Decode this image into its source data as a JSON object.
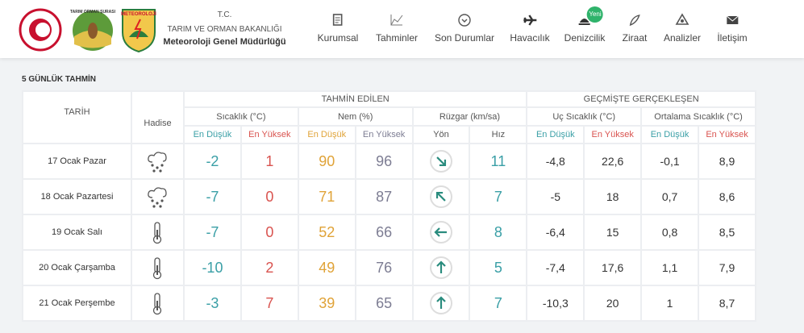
{
  "header": {
    "logos": [
      "TARIM ORMAN ŞURASI",
      "METEOROLOJİ"
    ],
    "org": [
      "T.C.",
      "TARIM VE ORMAN BAKANLIĞI",
      "Meteoroloji Genel Müdürlüğü"
    ],
    "nav": [
      {
        "label": "Kurumsal"
      },
      {
        "label": "Tahminler"
      },
      {
        "label": "Son Durumlar"
      },
      {
        "label": "Havacılık"
      },
      {
        "label": "Denizcilik",
        "badge": "Yeni"
      },
      {
        "label": "Ziraat"
      },
      {
        "label": "Analizler"
      },
      {
        "label": "İletişim"
      }
    ]
  },
  "section_title": "5 GÜNLÜK TAHMİN",
  "table": {
    "date_header": "TARİH",
    "hadise_header": "Hadise",
    "group_headers": [
      "TAHMİN EDİLEN",
      "GEÇMİŞTE GERÇEKLEŞEN"
    ],
    "sub_headers": [
      "Sıcaklık (°C)",
      "Nem (%)",
      "Rüzgar (km/sa)",
      "Uç Sıcaklık (°C)",
      "Ortalama Sıcaklık (°C)"
    ],
    "column_headers": [
      "En Düşük",
      "En Yüksek",
      "En Düşük",
      "En Yüksek",
      "Yön",
      "Hız",
      "En Düşük",
      "En Yüksek",
      "En Düşük",
      "En Yüksek"
    ],
    "rows": [
      [
        "17 Ocak Pazar",
        "-2",
        "1",
        "90",
        "96",
        "11",
        "-4,8",
        "22,6",
        "-0,1",
        "8,9"
      ],
      [
        "18 Ocak Pazartesi",
        "-7",
        "0",
        "71",
        "87",
        "7",
        "-5",
        "18",
        "0,7",
        "8,6"
      ],
      [
        "19 Ocak Salı",
        "-7",
        "0",
        "52",
        "66",
        "8",
        "-6,4",
        "15",
        "0,8",
        "8,5"
      ],
      [
        "20 Ocak Çarşamba",
        "-10",
        "2",
        "49",
        "76",
        "5",
        "-7,4",
        "17,6",
        "1,1",
        "7,9"
      ],
      [
        "21 Ocak Perşembe",
        "-3",
        "7",
        "39",
        "65",
        "7",
        "-10,3",
        "20",
        "1",
        "8,7"
      ]
    ]
  }
}
